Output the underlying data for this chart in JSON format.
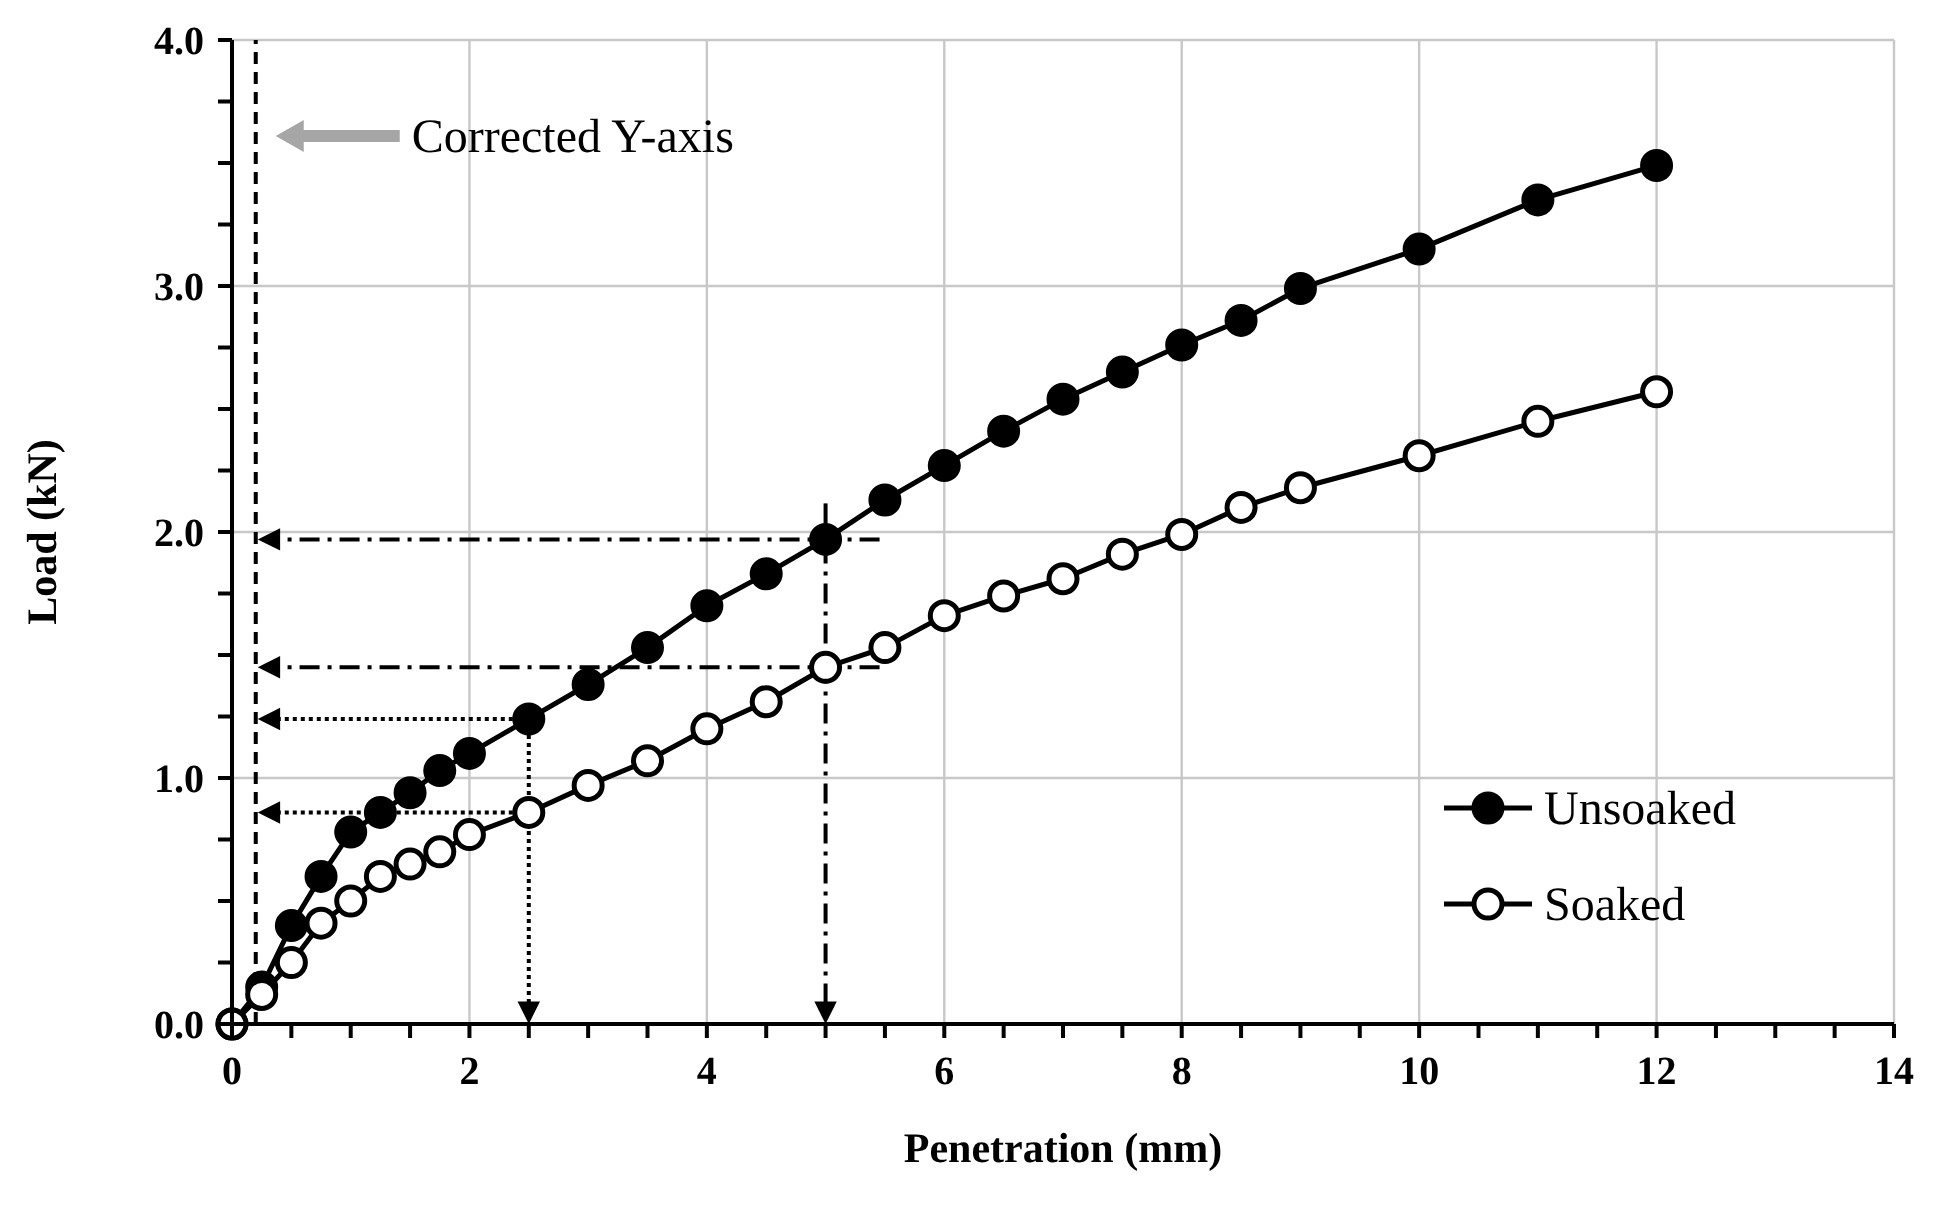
{
  "chart_data": {
    "type": "line",
    "xlabel": "Penetration (mm)",
    "ylabel": "Load (kN)",
    "xlim": [
      0,
      14
    ],
    "ylim": [
      0,
      4
    ],
    "xticks": [
      0,
      {
        "value": 0.5,
        "label": null
      },
      {
        "value": 1,
        "label": null
      },
      {
        "value": 1.5,
        "label": null
      },
      2,
      {
        "value": 2.5,
        "label": null
      },
      {
        "value": 3,
        "label": null
      },
      {
        "value": 3.5,
        "label": null
      },
      4,
      {
        "value": 4.5,
        "label": null
      },
      {
        "value": 5,
        "label": null
      },
      {
        "value": 5.5,
        "label": null
      },
      6,
      {
        "value": 6.5,
        "label": null
      },
      {
        "value": 7,
        "label": null
      },
      {
        "value": 7.5,
        "label": null
      },
      8,
      {
        "value": 8.5,
        "label": null
      },
      {
        "value": 9,
        "label": null
      },
      {
        "value": 9.5,
        "label": null
      },
      10,
      {
        "value": 10.5,
        "label": null
      },
      {
        "value": 11,
        "label": null
      },
      {
        "value": 11.5,
        "label": null
      },
      12,
      {
        "value": 12.5,
        "label": null
      },
      {
        "value": 13,
        "label": null
      },
      {
        "value": 13.5,
        "label": null
      },
      14
    ],
    "yticks": [
      {
        "value": 0,
        "label": "0.0"
      },
      {
        "value": 0.25,
        "label": null
      },
      {
        "value": 0.5,
        "label": null
      },
      {
        "value": 0.75,
        "label": null
      },
      {
        "value": 1,
        "label": "1.0"
      },
      {
        "value": 1.25,
        "label": null
      },
      {
        "value": 1.5,
        "label": null
      },
      {
        "value": 1.75,
        "label": null
      },
      {
        "value": 2,
        "label": "2.0"
      },
      {
        "value": 2.25,
        "label": null
      },
      {
        "value": 2.5,
        "label": null
      },
      {
        "value": 2.75,
        "label": null
      },
      {
        "value": 3,
        "label": "3.0"
      },
      {
        "value": 3.25,
        "label": null
      },
      {
        "value": 3.5,
        "label": null
      },
      {
        "value": 3.75,
        "label": null
      },
      {
        "value": 4,
        "label": "4.0"
      }
    ],
    "grid": true,
    "legend": "bottom right",
    "marker": "circle",
    "line_style": "solid",
    "x": [
      0,
      0.25,
      0.5,
      0.75,
      1,
      1.25,
      1.5,
      1.75,
      2,
      2.5,
      3,
      3.5,
      4,
      4.5,
      5,
      5.5,
      6,
      6.5,
      7,
      7.5,
      8,
      8.5,
      9,
      10,
      11,
      12
    ],
    "series": [
      {
        "name": "Unsoaked",
        "color": "#000000",
        "values": [
          0,
          0.15,
          0.4,
          0.6,
          0.78,
          0.86,
          0.94,
          1.03,
          1.1,
          1.24,
          1.38,
          1.53,
          1.7,
          1.83,
          1.97,
          2.13,
          2.27,
          2.41,
          2.54,
          2.65,
          2.76,
          2.86,
          2.99,
          3.15,
          3.35,
          3.49
        ]
      },
      {
        "name": "Soaked",
        "color": "#000000",
        "values": [
          0,
          0.12,
          0.25,
          0.41,
          0.5,
          0.6,
          0.65,
          0.7,
          0.77,
          0.86,
          0.97,
          1.07,
          1.2,
          1.31,
          1.45,
          1.53,
          1.66,
          1.74,
          1.81,
          1.91,
          1.99,
          2.1,
          2.18,
          2.31,
          2.45,
          2.57
        ]
      }
    ],
    "ref_lines": [
      {
        "axis": "x",
        "value": 0.2,
        "line_style": "dashed"
      },
      {
        "axis": "x",
        "value": 2.5,
        "line_style": "dotted"
      },
      {
        "axis": "x",
        "value": 5,
        "line_style": "dashed"
      }
    ],
    "annotations": [
      "Corrected Y-axis"
    ]
  }
}
